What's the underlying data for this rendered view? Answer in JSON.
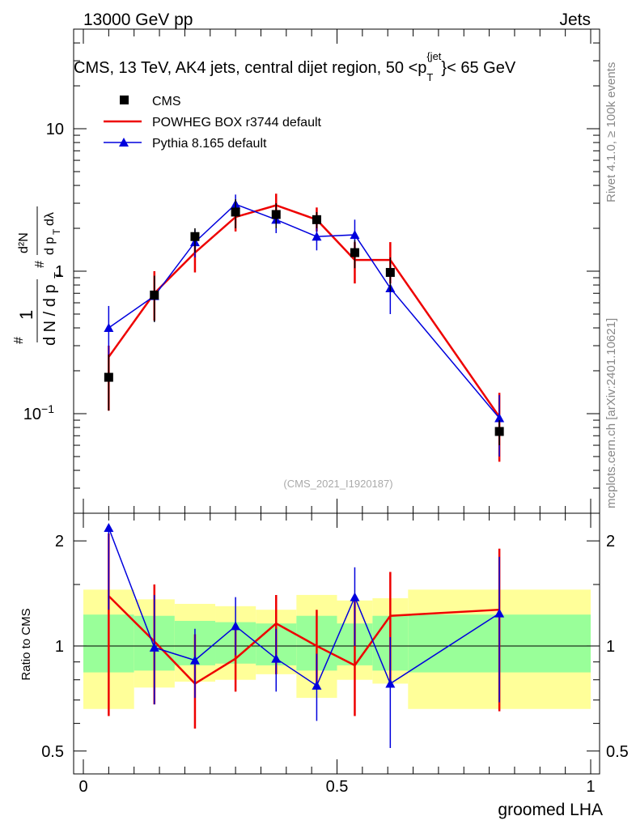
{
  "header": {
    "beam": "13000 GeV pp",
    "category": "Jets"
  },
  "side_labels": {
    "rivet": "Rivet 4.1.0, ≥ 100k events",
    "mcplots": "mcplots.cern.ch [arXiv:2401.10621]"
  },
  "analysis_id": "(CMS_2021_I1920187)",
  "colors": {
    "data": "#000000",
    "powheg": "#ee0000",
    "pythia": "#0000dd",
    "band_outer": "#ffff99",
    "band_inner": "#99ff99"
  },
  "chart_data": [
    {
      "type": "line",
      "panel": "main",
      "title": "CMS, 13 TeV, AK4 jets, central dijet region, 50 <p_T^{jet}< 65 GeV",
      "title_parts": {
        "a": "CMS, 13 TeV, AK4 jets, central dijet region, 50 <p",
        "sub": "T",
        "sup": "{jet",
        "b": "}< 65 GeV"
      },
      "ylabel_parts": {
        "frac": "1",
        "denom": "d N / d p",
        "sub": "T",
        "num": "#",
        "d2": "d²N",
        "dpt": "d p",
        "dl": "dλ"
      },
      "yscale": "log",
      "ylim": [
        0.02,
        50
      ],
      "xlim": [
        -0.02,
        1.0
      ],
      "y_ticks": [
        {
          "value": 0.1,
          "base": "10",
          "exp": "−1"
        },
        {
          "value": 1,
          "base": "1",
          "exp": ""
        },
        {
          "value": 10,
          "base": "10",
          "exp": ""
        }
      ],
      "legend_position": "top-left",
      "series": [
        {
          "name": "CMS",
          "style": "markers-square",
          "points": [
            {
              "x": 0.05,
              "y": 0.18,
              "xerr": 0,
              "ylo": 0.105,
              "yhi": 0.26
            },
            {
              "x": 0.14,
              "y": 0.68,
              "xerr": 0,
              "ylo": 0.44,
              "yhi": 0.93
            },
            {
              "x": 0.22,
              "y": 1.75,
              "xerr": 0,
              "ylo": 1.35,
              "yhi": 2.0
            },
            {
              "x": 0.3,
              "y": 2.6,
              "xerr": 0,
              "ylo": 2.0,
              "yhi": 3.2
            },
            {
              "x": 0.38,
              "y": 2.5,
              "xerr": 0,
              "ylo": 2.0,
              "yhi": 3.0
            },
            {
              "x": 0.46,
              "y": 2.3,
              "xerr": 0,
              "ylo": 2.0,
              "yhi": 2.6
            },
            {
              "x": 0.535,
              "y": 1.35,
              "xerr": 0,
              "ylo": 1.05,
              "yhi": 1.65
            },
            {
              "x": 0.605,
              "y": 0.98,
              "xerr": 0,
              "ylo": 0.72,
              "yhi": 1.25
            },
            {
              "x": 0.82,
              "y": 0.075,
              "xerr": 0,
              "ylo": 0.06,
              "yhi": 0.09
            }
          ]
        },
        {
          "name": "POWHEG BOX r3744 default",
          "style": "histogram",
          "points": [
            {
              "x": 0.05,
              "y": 0.25,
              "ylo": 0.105,
              "yhi": 0.3
            },
            {
              "x": 0.14,
              "y": 0.7,
              "ylo": 0.45,
              "yhi": 1.0
            },
            {
              "x": 0.22,
              "y": 1.35,
              "ylo": 0.98,
              "yhi": 1.8
            },
            {
              "x": 0.3,
              "y": 2.4,
              "ylo": 1.9,
              "yhi": 3.0
            },
            {
              "x": 0.38,
              "y": 2.9,
              "ylo": 2.3,
              "yhi": 3.5
            },
            {
              "x": 0.46,
              "y": 2.3,
              "ylo": 1.9,
              "yhi": 2.8
            },
            {
              "x": 0.535,
              "y": 1.2,
              "ylo": 0.82,
              "yhi": 1.6
            },
            {
              "x": 0.605,
              "y": 1.2,
              "ylo": 0.82,
              "yhi": 1.6
            },
            {
              "x": 0.82,
              "y": 0.095,
              "ylo": 0.046,
              "yhi": 0.14
            }
          ]
        },
        {
          "name": "Pythia 8.165 default",
          "style": "markers-triangle",
          "points": [
            {
              "x": 0.05,
              "y": 0.4,
              "ylo": 0.24,
              "yhi": 0.57
            },
            {
              "x": 0.14,
              "y": 0.67,
              "ylo": 0.44,
              "yhi": 0.92
            },
            {
              "x": 0.22,
              "y": 1.6,
              "ylo": 1.25,
              "yhi": 1.95
            },
            {
              "x": 0.3,
              "y": 2.95,
              "ylo": 2.45,
              "yhi": 3.45
            },
            {
              "x": 0.38,
              "y": 2.3,
              "ylo": 1.85,
              "yhi": 2.75
            },
            {
              "x": 0.46,
              "y": 1.75,
              "ylo": 1.4,
              "yhi": 2.15
            },
            {
              "x": 0.535,
              "y": 1.8,
              "ylo": 1.35,
              "yhi": 2.3
            },
            {
              "x": 0.605,
              "y": 0.76,
              "ylo": 0.5,
              "yhi": 1.02
            },
            {
              "x": 0.82,
              "y": 0.093,
              "ylo": 0.05,
              "yhi": 0.135
            }
          ]
        }
      ]
    },
    {
      "type": "line",
      "panel": "ratio",
      "xlabel": "groomed LHA",
      "ylabel": "Ratio to CMS",
      "yscale": "log",
      "ylim": [
        0.43,
        2.4
      ],
      "xlim": [
        -0.02,
        1.0
      ],
      "x_ticks": [
        {
          "value": 0,
          "label": "0"
        },
        {
          "value": 0.5,
          "label": "0.5"
        },
        {
          "value": 1,
          "label": "1"
        }
      ],
      "y_ticks": [
        {
          "value": 0.5,
          "label": "0.5"
        },
        {
          "value": 1,
          "label": "1"
        },
        {
          "value": 2,
          "label": "2"
        }
      ],
      "bins": [
        0,
        0.1,
        0.18,
        0.26,
        0.34,
        0.42,
        0.5,
        0.57,
        0.64,
        1.0
      ],
      "band_outer": [
        [
          0.66,
          1.45
        ],
        [
          0.76,
          1.36
        ],
        [
          0.79,
          1.32
        ],
        [
          0.8,
          1.3
        ],
        [
          0.83,
          1.27
        ],
        [
          0.71,
          1.4
        ],
        [
          0.8,
          1.35
        ],
        [
          0.78,
          1.37
        ],
        [
          0.66,
          1.45
        ]
      ],
      "band_inner": [
        [
          0.84,
          1.23
        ],
        [
          0.85,
          1.22
        ],
        [
          0.88,
          1.18
        ],
        [
          0.89,
          1.17
        ],
        [
          0.88,
          1.16
        ],
        [
          0.85,
          1.22
        ],
        [
          0.88,
          1.16
        ],
        [
          0.85,
          1.22
        ],
        [
          0.84,
          1.23
        ]
      ],
      "series": [
        {
          "name": "POWHEG BOX r3744 default",
          "points": [
            {
              "x": 0.05,
              "y": 1.39,
              "ylo": 0.63,
              "yhi": 2.1
            },
            {
              "x": 0.14,
              "y": 1.03,
              "ylo": 0.68,
              "yhi": 1.5
            },
            {
              "x": 0.22,
              "y": 0.78,
              "ylo": 0.58,
              "yhi": 1.08
            },
            {
              "x": 0.3,
              "y": 0.92,
              "ylo": 0.74,
              "yhi": 1.15
            },
            {
              "x": 0.38,
              "y": 1.16,
              "ylo": 0.83,
              "yhi": 1.4
            },
            {
              "x": 0.46,
              "y": 1.0,
              "ylo": 0.78,
              "yhi": 1.27
            },
            {
              "x": 0.535,
              "y": 0.88,
              "ylo": 0.63,
              "yhi": 1.38
            },
            {
              "x": 0.605,
              "y": 1.22,
              "ylo": 0.78,
              "yhi": 1.63
            },
            {
              "x": 0.82,
              "y": 1.27,
              "ylo": 0.65,
              "yhi": 1.9
            }
          ]
        },
        {
          "name": "Pythia 8.165 default",
          "points": [
            {
              "x": 0.05,
              "y": 2.18,
              "ylo": 1.27,
              "yhi": 2.18
            },
            {
              "x": 0.14,
              "y": 0.99,
              "ylo": 0.68,
              "yhi": 1.4
            },
            {
              "x": 0.22,
              "y": 0.91,
              "ylo": 0.71,
              "yhi": 1.12
            },
            {
              "x": 0.3,
              "y": 1.14,
              "ylo": 0.94,
              "yhi": 1.38
            },
            {
              "x": 0.38,
              "y": 0.92,
              "ylo": 0.74,
              "yhi": 1.12
            },
            {
              "x": 0.46,
              "y": 0.77,
              "ylo": 0.61,
              "yhi": 0.95
            },
            {
              "x": 0.535,
              "y": 1.38,
              "ylo": 1.0,
              "yhi": 1.68
            },
            {
              "x": 0.605,
              "y": 0.78,
              "ylo": 0.51,
              "yhi": 1.06
            },
            {
              "x": 0.82,
              "y": 1.24,
              "ylo": 0.69,
              "yhi": 1.8
            }
          ]
        }
      ]
    }
  ]
}
